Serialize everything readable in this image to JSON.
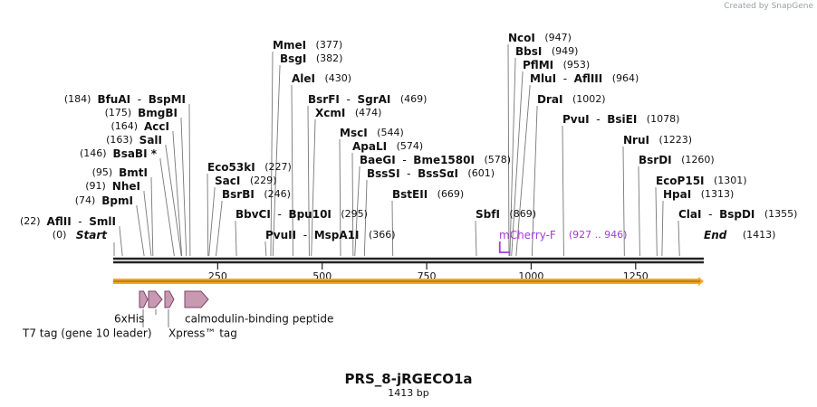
{
  "credit": "Created by SnapGene",
  "title": "PRS_8-jRGECO1a",
  "length_label": "1413 bp",
  "total_bp": 1413,
  "colors": {
    "backbone": "#222222",
    "orf_arrow": "#f5a623",
    "feature_fill": "#c89ab2",
    "feature_stroke": "#7a4466",
    "primer": "#a23dd8",
    "leader": "#777777"
  },
  "ticks": [
    250,
    500,
    750,
    1000,
    1250
  ],
  "ends": [
    {
      "id": "start",
      "pos_label": "(0)",
      "name": "Start",
      "bp": 0
    },
    {
      "id": "end",
      "pos_label": "(1413)",
      "name": "End",
      "bp": 1413
    }
  ],
  "sites_left": [
    {
      "pos": "(184)",
      "names": [
        "BfuAI",
        "BspMI"
      ],
      "bp": 184
    },
    {
      "pos": "(175)",
      "names": [
        "BmgBI"
      ],
      "bp": 175
    },
    {
      "pos": "(164)",
      "names": [
        "AccI"
      ],
      "bp": 164
    },
    {
      "pos": "(163)",
      "names": [
        "SalI"
      ],
      "bp": 163
    },
    {
      "pos": "(146)",
      "names": [
        "BsaBI *"
      ],
      "bp": 146
    },
    {
      "pos": "(95)",
      "names": [
        "BmtI"
      ],
      "bp": 95
    },
    {
      "pos": "(91)",
      "names": [
        "NheI"
      ],
      "bp": 91
    },
    {
      "pos": "(74)",
      "names": [
        "BpmI"
      ],
      "bp": 74
    },
    {
      "pos": "(22)",
      "names": [
        "AflII",
        "SmlI"
      ],
      "bp": 22
    }
  ],
  "sites_right": [
    {
      "names": [
        "MmeI"
      ],
      "pos": "(377)",
      "bp": 377
    },
    {
      "names": [
        "BsgI"
      ],
      "pos": "(382)",
      "bp": 382
    },
    {
      "names": [
        "AleI"
      ],
      "pos": "(430)",
      "bp": 430
    },
    {
      "names": [
        "BsrFI",
        "SgrAI"
      ],
      "pos": "(469)",
      "bp": 469
    },
    {
      "names": [
        "XcmI"
      ],
      "pos": "(474)",
      "bp": 474
    },
    {
      "names": [
        "MscI"
      ],
      "pos": "(544)",
      "bp": 544
    },
    {
      "names": [
        "ApaLI"
      ],
      "pos": "(574)",
      "bp": 574
    },
    {
      "names": [
        "BaeGI",
        "Bme1580I"
      ],
      "pos": "(578)",
      "bp": 578
    },
    {
      "names": [
        "BssSI",
        "BssSαI"
      ],
      "pos": "(601)",
      "bp": 601
    },
    {
      "names": [
        "BstEII"
      ],
      "pos": "(669)",
      "bp": 669
    },
    {
      "names": [
        "Eco53kI"
      ],
      "pos": "(227)",
      "bp": 227
    },
    {
      "names": [
        "SacI"
      ],
      "pos": "(229)",
      "bp": 229
    },
    {
      "names": [
        "BsrBI"
      ],
      "pos": "(246)",
      "bp": 246
    },
    {
      "names": [
        "BbvCI",
        "Bpu10I"
      ],
      "pos": "(295)",
      "bp": 295
    },
    {
      "names": [
        "PvuII",
        "MspA1I"
      ],
      "pos": "(366)",
      "bp": 366
    },
    {
      "names": [
        "NcoI"
      ],
      "pos": "(947)",
      "bp": 947
    },
    {
      "names": [
        "BbsI"
      ],
      "pos": "(949)",
      "bp": 949
    },
    {
      "names": [
        "PflMI"
      ],
      "pos": "(953)",
      "bp": 953
    },
    {
      "names": [
        "MluI",
        "AflIII"
      ],
      "pos": "(964)",
      "bp": 964
    },
    {
      "names": [
        "DraI"
      ],
      "pos": "(1002)",
      "bp": 1002
    },
    {
      "names": [
        "PvuI",
        "BsiEI"
      ],
      "pos": "(1078)",
      "bp": 1078
    },
    {
      "names": [
        "SbfI"
      ],
      "pos": "(869)",
      "bp": 869
    },
    {
      "names": [
        "NruI"
      ],
      "pos": "(1223)",
      "bp": 1223
    },
    {
      "names": [
        "BsrDI"
      ],
      "pos": "(1260)",
      "bp": 1260
    },
    {
      "names": [
        "EcoP15I"
      ],
      "pos": "(1301)",
      "bp": 1301
    },
    {
      "names": [
        "HpaI"
      ],
      "pos": "(1313)",
      "bp": 1313
    },
    {
      "names": [
        "ClaI",
        "BspDI"
      ],
      "pos": "(1355)",
      "bp": 1355
    }
  ],
  "primer": {
    "name": "mCherry-F",
    "range": "(927 .. 946)",
    "start": 927,
    "end": 946
  },
  "features": [
    {
      "name": "T7 tag (gene 10 leader)",
      "start": 63,
      "end": 96
    },
    {
      "name": "6xHis",
      "start": 96,
      "end": 114
    },
    {
      "name": "Xpress™ tag",
      "start": 114,
      "end": 138
    },
    {
      "name": "calmodulin-binding peptide",
      "start": 138,
      "end": 192
    }
  ],
  "feature_labels": {
    "his": "6xHis",
    "cbp": "calmodulin-binding peptide",
    "t7": "T7 tag (gene 10 leader)",
    "xpress": "Xpress™ tag"
  }
}
